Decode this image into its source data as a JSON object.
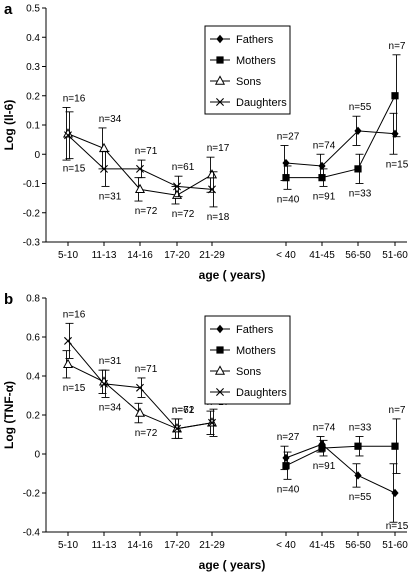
{
  "chart_data": [
    {
      "type": "line",
      "panel_label": "a",
      "ylabel": "Log (Il-6)",
      "xlabel": "age ( years)",
      "ylim": [
        -0.3,
        0.5
      ],
      "yticks": [
        "-0.3",
        "-0.2",
        "-0.1",
        "0",
        "0.1",
        "0.2",
        "0.3",
        "0.4",
        "0.5"
      ],
      "grid": false,
      "legend_position": "top-center",
      "legend": [
        "Fathers",
        "Mothers",
        "Sons",
        "Daughters"
      ],
      "groups": [
        {
          "categories": [
            "5-10",
            "11-13",
            "14-16",
            "17-20",
            "21-29"
          ],
          "series": [
            {
              "name": "Sons",
              "marker": "triangle",
              "values": [
                0.07,
                0.02,
                -0.12,
                -0.14,
                -0.07
              ],
              "err": [
                0.09,
                0.07,
                0.04,
                0.03,
                0.06
              ],
              "n": [
                "n=16",
                "n=34",
                "n=72",
                "n=72",
                "n=17"
              ]
            },
            {
              "name": "Daughters",
              "marker": "x",
              "values": [
                0.065,
                -0.05,
                -0.05,
                -0.11,
                -0.12
              ],
              "err": [
                0.08,
                0.06,
                0.03,
                0.035,
                0.06
              ],
              "n": [
                "n=15",
                "n=31",
                "n=71",
                "n=61",
                "n=18"
              ]
            }
          ]
        },
        {
          "categories": [
            "< 40",
            "41-45",
            "56-50",
            "51-60"
          ],
          "series": [
            {
              "name": "Fathers",
              "marker": "diamond",
              "values": [
                -0.03,
                -0.04,
                0.08,
                0.07
              ],
              "err": [
                0.06,
                0.04,
                0.05,
                0.07
              ],
              "n": [
                "n=27",
                "n=74",
                "n=55",
                "n=15"
              ]
            },
            {
              "name": "Mothers",
              "marker": "square",
              "values": [
                -0.08,
                -0.08,
                -0.05,
                0.2
              ],
              "err": [
                0.04,
                0.03,
                0.05,
                0.14
              ],
              "n": [
                "n=40",
                "n=91",
                "n=33",
                "n=7"
              ]
            }
          ]
        }
      ]
    },
    {
      "type": "line",
      "panel_label": "b",
      "ylabel": "Log (TNF-α)",
      "xlabel": "age ( years)",
      "ylim": [
        -0.4,
        0.8
      ],
      "yticks": [
        "-0.4",
        "-0.2",
        "0",
        "0.2",
        "0.4",
        "0.6",
        "0.8"
      ],
      "grid": false,
      "legend_position": "top-center",
      "legend": [
        "Fathers",
        "Mothers",
        "Sons",
        "Daughters"
      ],
      "groups": [
        {
          "categories": [
            "5-10",
            "11-13",
            "14-16",
            "17-20",
            "21-29"
          ],
          "series": [
            {
              "name": "Sons",
              "marker": "triangle",
              "values": [
                0.46,
                0.37,
                0.21,
                0.13,
                0.16
              ],
              "err": [
                0.07,
                0.06,
                0.05,
                0.05,
                0.06
              ],
              "n": [
                "n=15",
                "n=31",
                "n=72",
                "n=61",
                "n=17"
              ]
            },
            {
              "name": "Daughters",
              "marker": "x",
              "values": [
                0.58,
                0.36,
                0.34,
                0.13,
                0.16
              ],
              "err": [
                0.09,
                0.07,
                0.05,
                0.05,
                0.07
              ],
              "n": [
                "n=16",
                "n=34",
                "n=71",
                "n=72",
                "n=18"
              ]
            }
          ]
        },
        {
          "categories": [
            "< 40",
            "41-45",
            "56-50",
            "51-60"
          ],
          "series": [
            {
              "name": "Fathers",
              "marker": "diamond",
              "values": [
                -0.02,
                0.05,
                -0.11,
                -0.2
              ],
              "err": [
                0.06,
                0.04,
                0.06,
                0.15
              ],
              "n": [
                "n=27",
                "n=74",
                "n=55",
                "n=15"
              ]
            },
            {
              "name": "Mothers",
              "marker": "square",
              "values": [
                -0.06,
                0.03,
                0.04,
                0.04
              ],
              "err": [
                0.07,
                0.04,
                0.05,
                0.14
              ],
              "n": [
                "n=40",
                "n=91",
                "n=33",
                "n=7"
              ]
            }
          ]
        }
      ]
    }
  ]
}
